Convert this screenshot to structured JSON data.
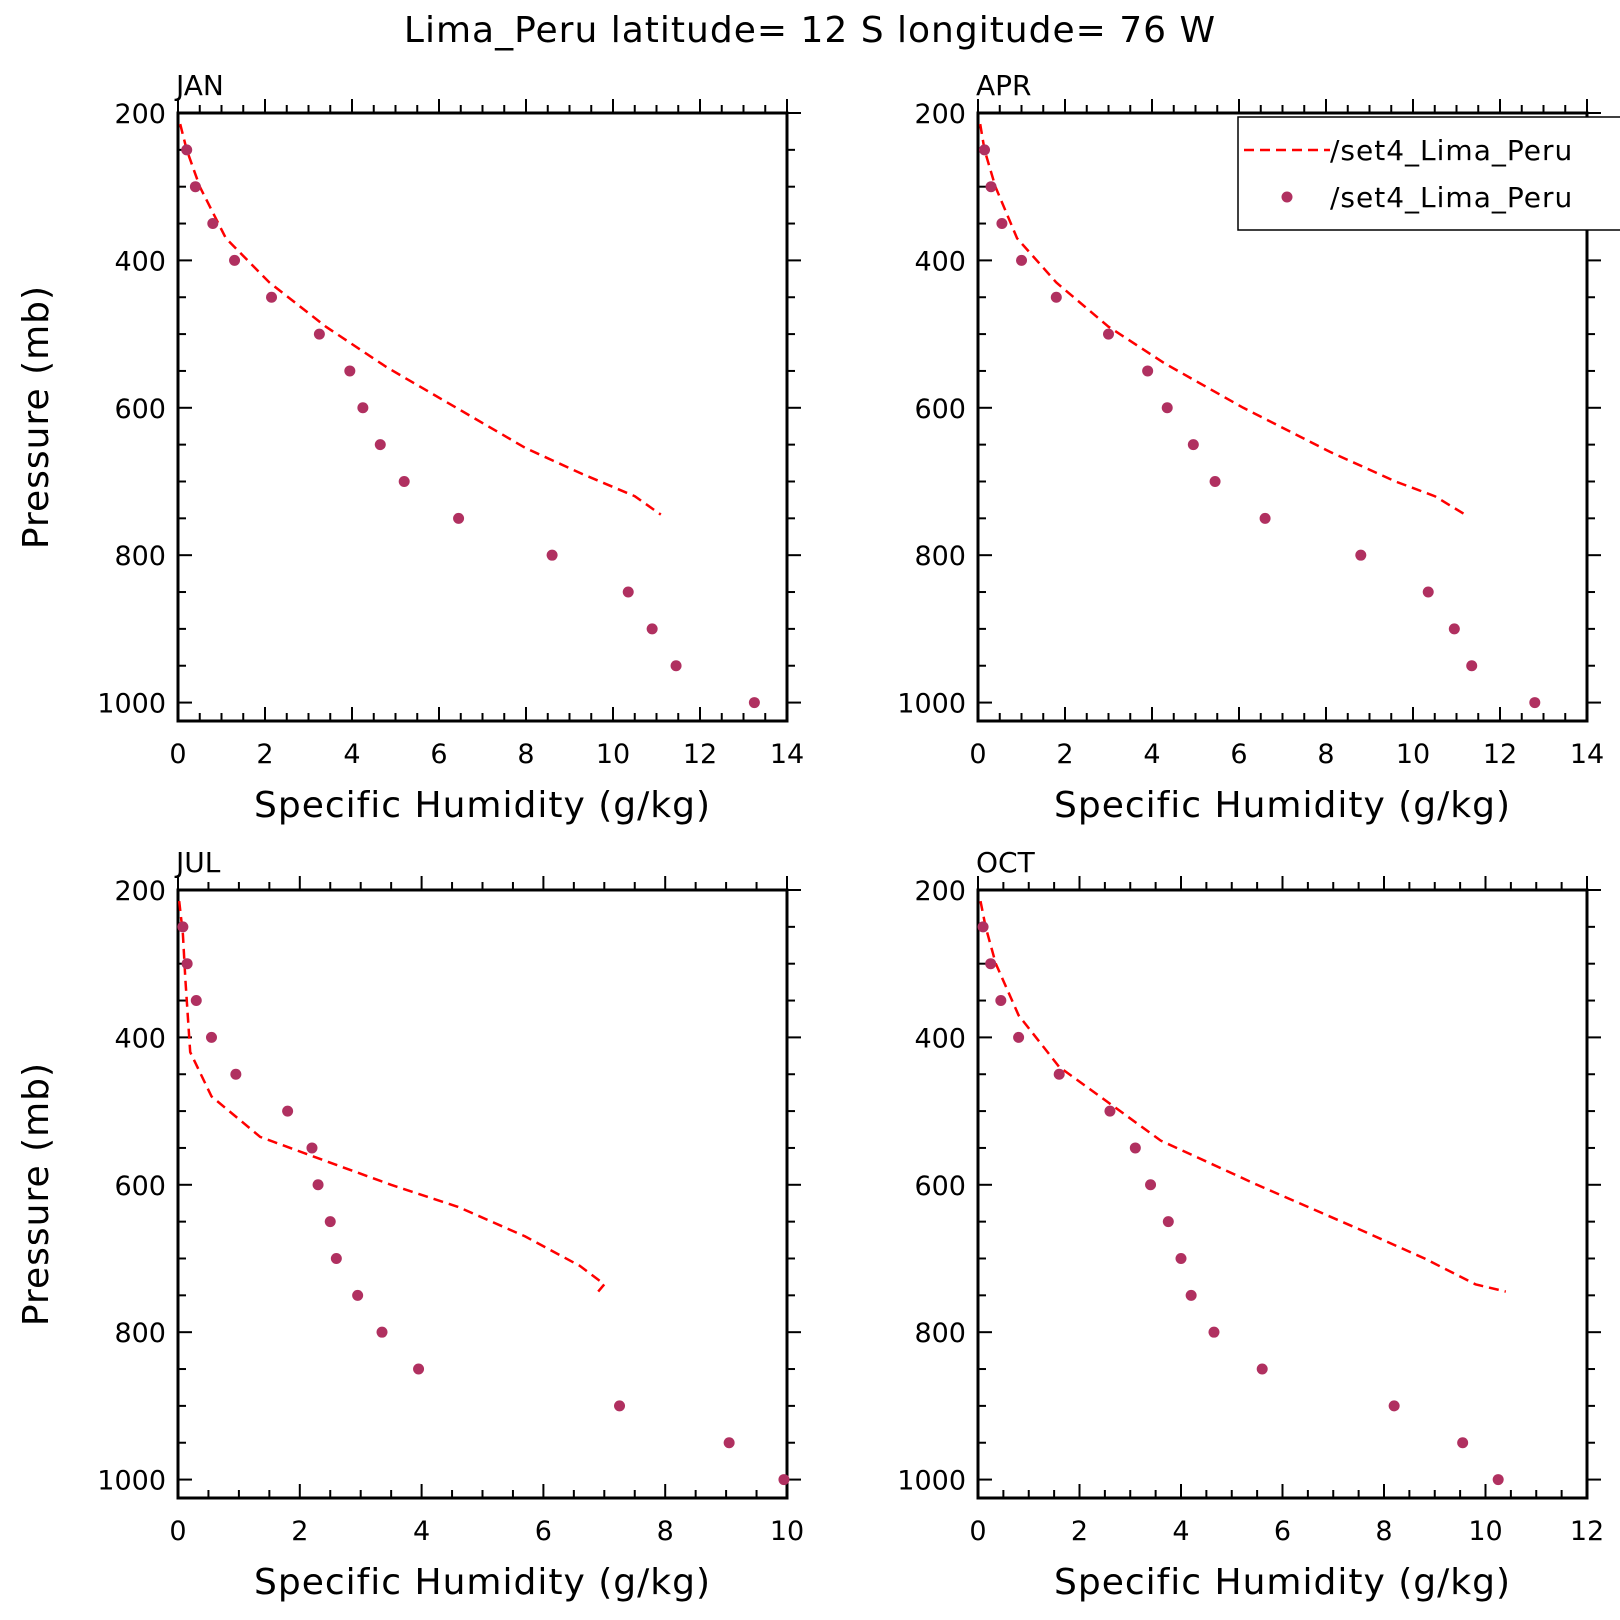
{
  "title": "Lima_Peru  latitude= 12 S longitude= 76 W",
  "colors": {
    "model": "#ff0000",
    "obs": "#b03060",
    "axis": "#000000",
    "background": "#ffffff"
  },
  "legend": {
    "placement": "top-right of APR panel",
    "entries": [
      {
        "label": "/set4_Lima_Peru",
        "style": "dashed-line",
        "color": "#ff0000"
      },
      {
        "label": "/set4_Lima_Peru",
        "style": "dot",
        "color": "#b03060"
      }
    ]
  },
  "chart_data": [
    {
      "type": "line",
      "title": "JAN",
      "xlabel": "Specific Humidity (g/kg)",
      "ylabel": "Pressure (mb)",
      "xlim": [
        0,
        14
      ],
      "ylim": [
        200,
        1025
      ],
      "y_inverted": true,
      "xticks": [
        0,
        2,
        4,
        6,
        8,
        10,
        12,
        14
      ],
      "yticks": [
        200,
        400,
        600,
        800,
        1000
      ],
      "series": [
        {
          "label": "/set4_Lima_Peru",
          "style": "dashed-line",
          "x": [
            0.05,
            0.2,
            0.5,
            1.1,
            2.1,
            3.4,
            4.8,
            6.4,
            8.0,
            9.3,
            10.5,
            11.1
          ],
          "y": [
            215,
            250,
            300,
            370,
            430,
            490,
            545,
            600,
            655,
            690,
            720,
            745
          ]
        },
        {
          "label": "/set4_Lima_Peru",
          "style": "dots",
          "x": [
            0.2,
            0.4,
            0.8,
            1.3,
            2.15,
            3.25,
            3.95,
            4.25,
            4.65,
            5.2,
            6.45,
            8.6,
            10.35,
            10.9,
            11.45,
            13.25
          ],
          "y": [
            250,
            300,
            350,
            400,
            450,
            500,
            550,
            600,
            650,
            700,
            750,
            800,
            850,
            900,
            950,
            1000
          ]
        }
      ]
    },
    {
      "type": "line",
      "title": "APR",
      "xlabel": "Specific Humidity (g/kg)",
      "ylabel": "",
      "xlim": [
        0,
        14
      ],
      "ylim": [
        200,
        1025
      ],
      "y_inverted": true,
      "xticks": [
        0,
        2,
        4,
        6,
        8,
        10,
        12,
        14
      ],
      "yticks": [
        200,
        400,
        600,
        800,
        1000
      ],
      "series": [
        {
          "label": "/set4_Lima_Peru",
          "style": "dashed-line",
          "x": [
            0.05,
            0.15,
            0.4,
            0.9,
            1.8,
            3.0,
            4.3,
            6.1,
            8.1,
            9.6,
            10.5,
            11.2
          ],
          "y": [
            215,
            250,
            300,
            370,
            430,
            490,
            540,
            600,
            660,
            700,
            720,
            745
          ]
        },
        {
          "label": "/set4_Lima_Peru",
          "style": "dots",
          "x": [
            0.15,
            0.3,
            0.55,
            1.0,
            1.8,
            3.0,
            3.9,
            4.35,
            4.95,
            5.45,
            6.6,
            8.8,
            10.35,
            10.95,
            11.35,
            12.8
          ],
          "y": [
            250,
            300,
            350,
            400,
            450,
            500,
            550,
            600,
            650,
            700,
            750,
            800,
            850,
            900,
            950,
            1000
          ]
        }
      ]
    },
    {
      "type": "line",
      "title": "JUL",
      "xlabel": "Specific Humidity (g/kg)",
      "ylabel": "Pressure (mb)",
      "xlim": [
        0,
        10
      ],
      "ylim": [
        200,
        1025
      ],
      "y_inverted": true,
      "xticks": [
        0,
        2,
        4,
        6,
        8,
        10
      ],
      "yticks": [
        200,
        400,
        600,
        800,
        1000
      ],
      "series": [
        {
          "label": "/set4_Lima_Peru",
          "style": "dashed-line",
          "x": [
            0.02,
            0.08,
            0.12,
            0.2,
            0.55,
            1.35,
            2.5,
            3.5,
            4.6,
            5.7,
            6.6,
            7.0,
            6.9
          ],
          "y": [
            215,
            260,
            320,
            420,
            480,
            535,
            570,
            600,
            630,
            670,
            710,
            735,
            745
          ]
        },
        {
          "label": "/set4_Lima_Peru",
          "style": "dots",
          "x": [
            0.08,
            0.15,
            0.3,
            0.55,
            0.95,
            1.8,
            2.2,
            2.3,
            2.5,
            2.6,
            2.95,
            3.35,
            3.95,
            7.25,
            9.05,
            9.95
          ],
          "y": [
            250,
            300,
            350,
            400,
            450,
            500,
            550,
            600,
            650,
            700,
            750,
            800,
            850,
            900,
            950,
            1000
          ]
        }
      ]
    },
    {
      "type": "line",
      "title": "OCT",
      "xlabel": "Specific Humidity (g/kg)",
      "ylabel": "",
      "xlim": [
        0,
        12
      ],
      "ylim": [
        200,
        1025
      ],
      "y_inverted": true,
      "xticks": [
        0,
        2,
        4,
        6,
        8,
        10,
        12
      ],
      "yticks": [
        200,
        400,
        600,
        800,
        1000
      ],
      "series": [
        {
          "label": "/set4_Lima_Peru",
          "style": "dashed-line",
          "x": [
            0.05,
            0.15,
            0.35,
            0.8,
            1.6,
            2.6,
            3.6,
            5.5,
            7.5,
            8.8,
            9.8,
            10.4
          ],
          "y": [
            215,
            250,
            300,
            370,
            440,
            490,
            540,
            600,
            660,
            700,
            735,
            745
          ]
        },
        {
          "label": "/set4_Lima_Peru",
          "style": "dots",
          "x": [
            0.1,
            0.25,
            0.45,
            0.8,
            1.6,
            2.6,
            3.1,
            3.4,
            3.75,
            4.0,
            4.2,
            4.65,
            5.6,
            8.2,
            9.55,
            10.25
          ],
          "y": [
            250,
            300,
            350,
            400,
            450,
            500,
            550,
            600,
            650,
            700,
            750,
            800,
            850,
            900,
            950,
            1000
          ]
        }
      ]
    }
  ]
}
